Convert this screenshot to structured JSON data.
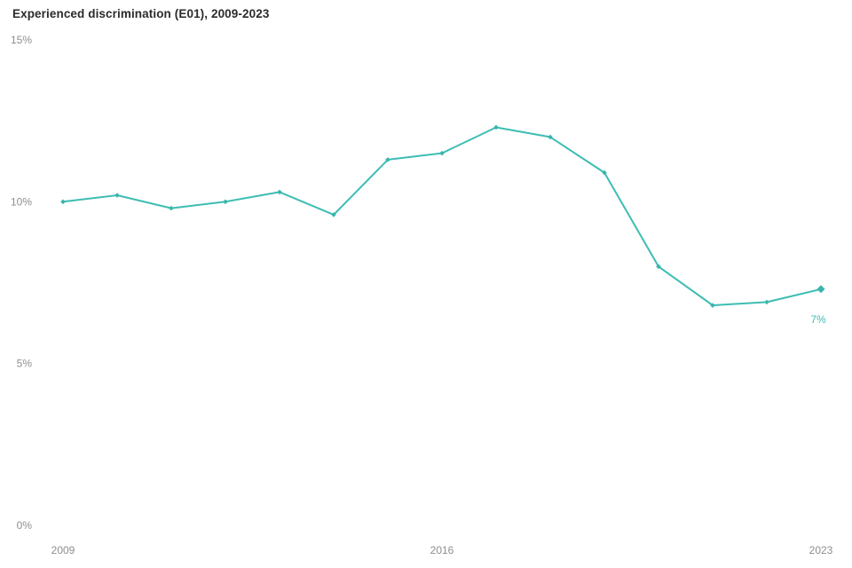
{
  "chart": {
    "title": "Experienced discrimination (E01), 2009-2023"
  },
  "colors": {
    "line": "#3dbdb3",
    "marker": "#38b6ac",
    "title_text": "#2b2b2b",
    "axis_label": "#8e8e8e",
    "background": "#ffffff"
  },
  "chart_data": {
    "type": "line",
    "title": "Experienced discrimination (E01), 2009-2023",
    "x": [
      2009,
      2010,
      2011,
      2012,
      2013,
      2014,
      2015,
      2016,
      2017,
      2018,
      2019,
      2020,
      2021,
      2022,
      2023
    ],
    "series": [
      {
        "name": "Experienced discrimination (E01)",
        "values": [
          10.0,
          10.2,
          9.8,
          10.0,
          10.3,
          9.6,
          11.3,
          11.5,
          12.3,
          12.0,
          10.9,
          8.0,
          6.8,
          6.9,
          7.3
        ]
      }
    ],
    "xlabel": "",
    "ylabel": "",
    "ylim": [
      0,
      15
    ],
    "grid": false,
    "legend": "none",
    "y_ticks": [
      {
        "value": 0,
        "label": "0%"
      },
      {
        "value": 5,
        "label": "5%"
      },
      {
        "value": 10,
        "label": "10%"
      },
      {
        "value": 15,
        "label": "15%"
      }
    ],
    "x_ticks": [
      {
        "value": 2009,
        "label": "2009"
      },
      {
        "value": 2016,
        "label": "2016"
      },
      {
        "value": 2023,
        "label": "2023"
      }
    ],
    "point_labels": [
      {
        "x": 2023,
        "label": "7%"
      }
    ]
  }
}
